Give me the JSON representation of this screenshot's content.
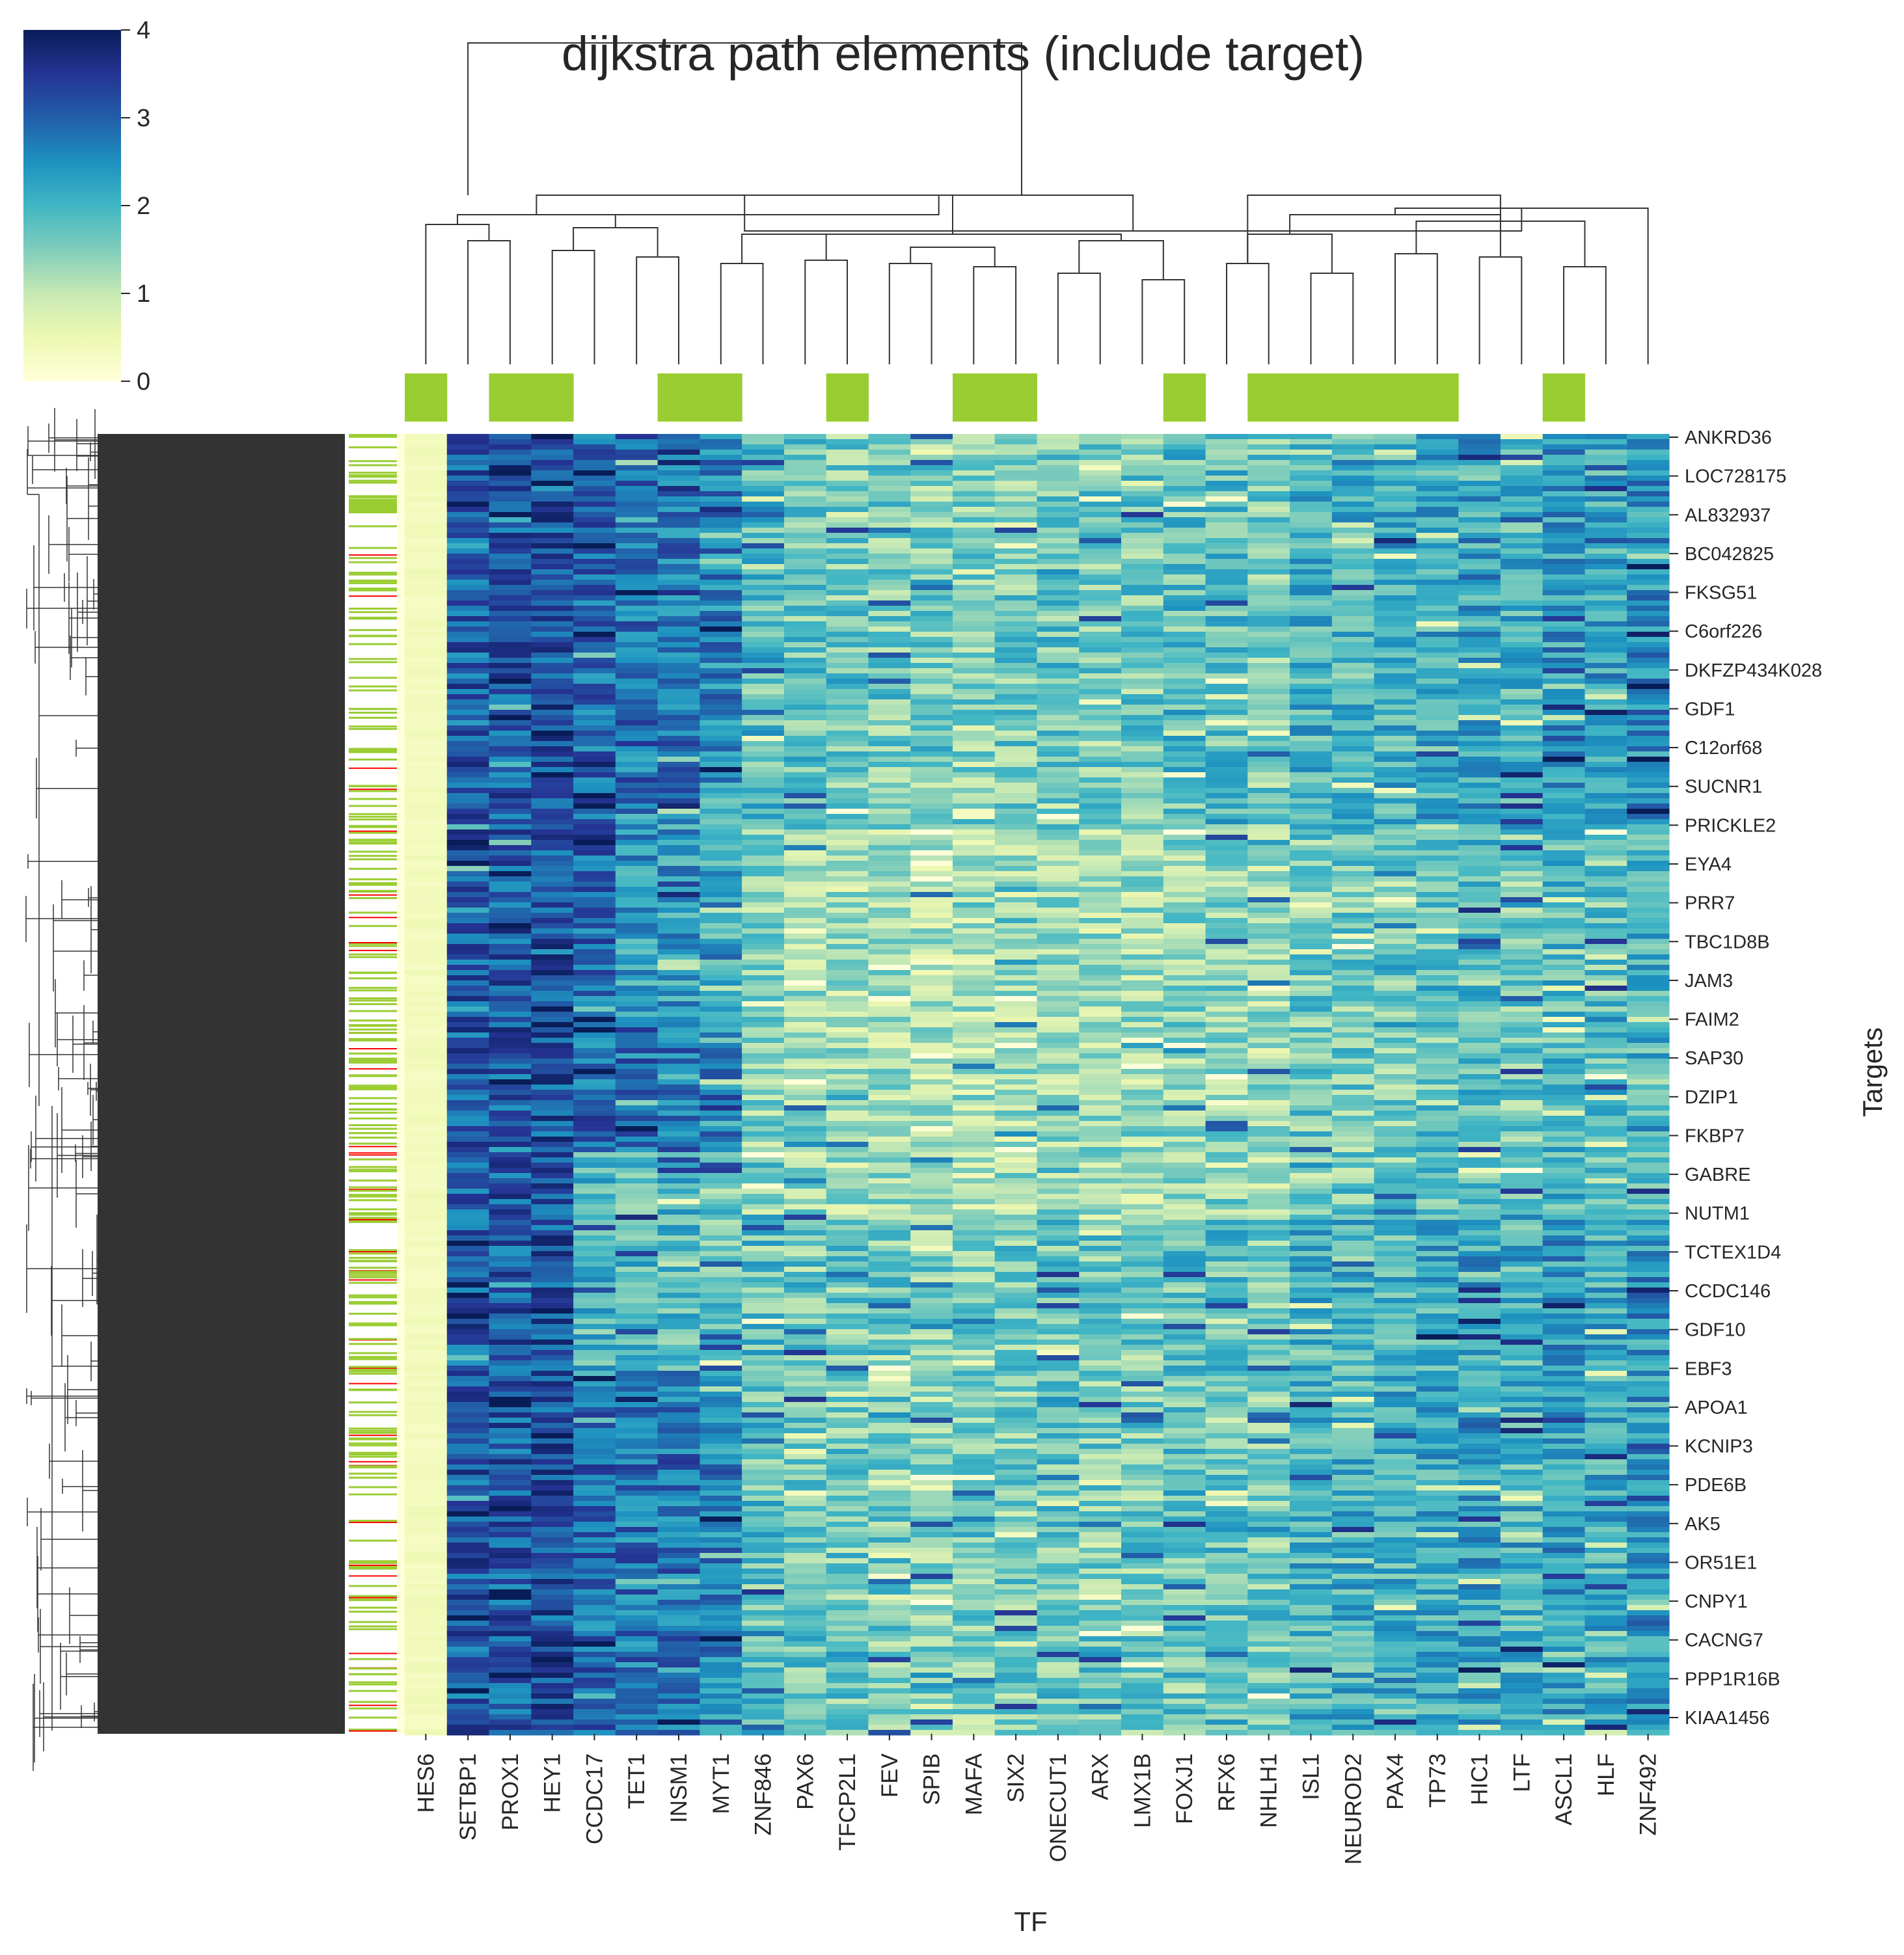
{
  "chart_data": {
    "type": "heatmap",
    "title": "dijkstra path elements (include target)",
    "xlabel": "TF",
    "ylabel": "Targets",
    "colormap": "YlGnBu",
    "value_range": [
      0,
      4
    ],
    "colorbar_ticks": [
      "0",
      "1",
      "2",
      "3",
      "4"
    ],
    "x_tick_labels": [
      "HES6",
      "SETBP1",
      "PROX1",
      "HEY1",
      "CCDC17",
      "TET1",
      "INSM1",
      "MYT1",
      "ZNF846",
      "PAX6",
      "TFCP2L1",
      "FEV",
      "SPIB",
      "MAFA",
      "SIX2",
      "ONECUT1",
      "ARX",
      "LMX1B",
      "FOXJ1",
      "RFX6",
      "NHLH1",
      "ISL1",
      "NEUROD2",
      "PAX4",
      "TP73",
      "HIC1",
      "LTF",
      "ASCL1",
      "HLF",
      "ZNF492"
    ],
    "y_tick_labels": [
      "ANKRD36",
      "LOC728175",
      "AL832937",
      "BC042825",
      "FKSG51",
      "C6orf226",
      "DKFZP434K028",
      "GDF1",
      "C12orf68",
      "SUCNR1",
      "PRICKLE2",
      "EYA4",
      "PRR7",
      "TBC1D8B",
      "JAM3",
      "FAIM2",
      "SAP30",
      "DZIP1",
      "FKBP7",
      "GABRE",
      "NUTM1",
      "TCTEX1D4",
      "CCDC146",
      "GDF10",
      "EBF3",
      "APOA1",
      "KCNIP3",
      "PDE6B",
      "AK5",
      "OR51E1",
      "CNPY1",
      "CACNG7",
      "PPP1R16B",
      "KIAA1456"
    ],
    "column_annotation_color": "#9acd32",
    "row_annotation_colors": [
      "#9acd32",
      "#ff0000"
    ],
    "column_blocks": [
      {
        "label": "HES6",
        "base": 0.3,
        "annotated": true
      },
      {
        "label": "SETBP1",
        "base": 3.1,
        "annotated": false
      },
      {
        "label": "PROX1",
        "base": 3.1,
        "annotated": true
      },
      {
        "label": "HEY1",
        "base": 3.2,
        "annotated": true
      },
      {
        "label": "CCDC17",
        "base": 2.9,
        "annotated": false
      },
      {
        "label": "TET1",
        "base": 2.8,
        "annotated": false
      },
      {
        "label": "INSM1",
        "base": 2.8,
        "annotated": true
      },
      {
        "label": "MYT1",
        "base": 2.6,
        "annotated": true
      },
      {
        "label": "ZNF846",
        "base": 1.7,
        "annotated": false
      },
      {
        "label": "PAX6",
        "base": 1.6,
        "annotated": false
      },
      {
        "label": "TFCP2L1",
        "base": 1.5,
        "annotated": true
      },
      {
        "label": "FEV",
        "base": 1.5,
        "annotated": false
      },
      {
        "label": "SPIB",
        "base": 1.4,
        "annotated": false
      },
      {
        "label": "MAFA",
        "base": 1.4,
        "annotated": true
      },
      {
        "label": "SIX2",
        "base": 1.5,
        "annotated": true
      },
      {
        "label": "ONECUT1",
        "base": 1.6,
        "annotated": false
      },
      {
        "label": "ARX",
        "base": 1.5,
        "annotated": false
      },
      {
        "label": "LMX1B",
        "base": 1.5,
        "annotated": false
      },
      {
        "label": "FOXJ1",
        "base": 1.7,
        "annotated": true
      },
      {
        "label": "RFX6",
        "base": 1.7,
        "annotated": false
      },
      {
        "label": "NHLH1",
        "base": 1.5,
        "annotated": true
      },
      {
        "label": "ISL1",
        "base": 1.9,
        "annotated": true
      },
      {
        "label": "NEUROD2",
        "base": 1.9,
        "annotated": true
      },
      {
        "label": "PAX4",
        "base": 1.9,
        "annotated": true
      },
      {
        "label": "TP73",
        "base": 2.0,
        "annotated": true
      },
      {
        "label": "HIC1",
        "base": 2.1,
        "annotated": false
      },
      {
        "label": "LTF",
        "base": 1.9,
        "annotated": false
      },
      {
        "label": "ASCL1",
        "base": 2.2,
        "annotated": true
      },
      {
        "label": "HLF",
        "base": 2.0,
        "annotated": false
      },
      {
        "label": "ZNF492",
        "base": 2.3,
        "annotated": false
      }
    ]
  }
}
